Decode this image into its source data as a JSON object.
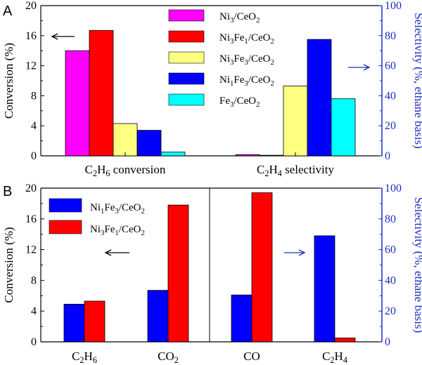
{
  "chart_data": [
    {
      "panel": "A",
      "type": "bar",
      "categories": [
        "C2H6 conversion",
        "C2H4 selectivity"
      ],
      "category_labels": [
        {
          "parts": [
            [
              "C",
              ""
            ],
            [
              "2",
              "sub"
            ],
            [
              "H",
              ""
            ],
            [
              "6",
              "sub"
            ],
            [
              " conversion",
              ""
            ]
          ]
        },
        {
          "parts": [
            [
              "C",
              ""
            ],
            [
              "2",
              "sub"
            ],
            [
              "H",
              ""
            ],
            [
              "4",
              "sub"
            ],
            [
              " selectivity",
              ""
            ]
          ]
        }
      ],
      "series": [
        {
          "name": "Ni3/CeO2",
          "color": "#ff00ff",
          "label_parts": [
            [
              "Ni",
              ""
            ],
            [
              "3",
              "sub"
            ],
            [
              "/CeO",
              ""
            ],
            [
              "2",
              "sub"
            ]
          ],
          "values": [
            14.0,
            0.8
          ],
          "axis": [
            "left",
            "right"
          ]
        },
        {
          "name": "Ni3Fe1/CeO2",
          "color": "#ff0000",
          "label_parts": [
            [
              "Ni",
              ""
            ],
            [
              "3",
              "sub"
            ],
            [
              "Fe",
              ""
            ],
            [
              "1",
              "sub"
            ],
            [
              "/CeO",
              ""
            ],
            [
              "2",
              "sub"
            ]
          ],
          "values": [
            16.7,
            0.4
          ],
          "axis": [
            "left",
            "right"
          ]
        },
        {
          "name": "Ni3Fe3/CeO2",
          "color": "#ffff80",
          "label_parts": [
            [
              "Ni",
              ""
            ],
            [
              "3",
              "sub"
            ],
            [
              "Fe",
              ""
            ],
            [
              "3",
              "sub"
            ],
            [
              "/CeO",
              ""
            ],
            [
              "2",
              "sub"
            ]
          ],
          "values": [
            4.3,
            46.5
          ],
          "axis": [
            "left",
            "right"
          ]
        },
        {
          "name": "Ni1Fe3/CeO2",
          "color": "#0000ff",
          "label_parts": [
            [
              "Ni",
              ""
            ],
            [
              "1",
              "sub"
            ],
            [
              "Fe",
              ""
            ],
            [
              "3",
              "sub"
            ],
            [
              "/CeO",
              ""
            ],
            [
              "2",
              "sub"
            ]
          ],
          "values": [
            3.4,
            77.5
          ],
          "axis": [
            "left",
            "right"
          ]
        },
        {
          "name": "Fe3/CeO2",
          "color": "#00ffff",
          "label_parts": [
            [
              "Fe",
              ""
            ],
            [
              "3",
              "sub"
            ],
            [
              "/CeO",
              ""
            ],
            [
              "2",
              "sub"
            ]
          ],
          "values": [
            0.5,
            38.0
          ],
          "axis": [
            "left",
            "right"
          ]
        }
      ],
      "ylabel_left": "Conversion (%)",
      "ylabel_right": "Selectivity (%, ethane basis)",
      "ylim_left": [
        0,
        20
      ],
      "ylim_right": [
        0,
        100
      ],
      "yticks_left": [
        0,
        4,
        8,
        12,
        16,
        20
      ],
      "yticks_right": [
        0,
        20,
        40,
        60,
        80,
        100
      ],
      "legend_position": "top-center",
      "arrows": [
        {
          "direction": "left",
          "color": "#000000"
        },
        {
          "direction": "right",
          "color": "#1a2fbf"
        }
      ]
    },
    {
      "panel": "B",
      "type": "bar",
      "categories": [
        "C2H6",
        "CO2",
        "CO",
        "C2H4"
      ],
      "category_labels": [
        {
          "parts": [
            [
              "C",
              ""
            ],
            [
              "2",
              "sub"
            ],
            [
              "H",
              ""
            ],
            [
              "6",
              "sub"
            ]
          ]
        },
        {
          "parts": [
            [
              "CO",
              ""
            ],
            [
              "2",
              "sub"
            ]
          ]
        },
        {
          "parts": [
            [
              "CO",
              ""
            ]
          ]
        },
        {
          "parts": [
            [
              "C",
              ""
            ],
            [
              "2",
              "sub"
            ],
            [
              "H",
              ""
            ],
            [
              "4",
              "sub"
            ]
          ]
        }
      ],
      "series": [
        {
          "name": "Ni1Fe3/CeO2",
          "color": "#0000ff",
          "label_parts": [
            [
              "Ni",
              ""
            ],
            [
              "1",
              "sub"
            ],
            [
              "Fe",
              ""
            ],
            [
              "3",
              "sub"
            ],
            [
              "/CeO",
              ""
            ],
            [
              "2",
              "sub"
            ]
          ],
          "values": [
            4.9,
            6.7,
            30.5,
            69.0
          ],
          "axis": [
            "left",
            "left",
            "right",
            "right"
          ]
        },
        {
          "name": "Ni3Fe1/CeO2",
          "color": "#ff0000",
          "label_parts": [
            [
              "Ni",
              ""
            ],
            [
              "3",
              "sub"
            ],
            [
              "Fe",
              ""
            ],
            [
              "1",
              "sub"
            ],
            [
              "/CeO",
              ""
            ],
            [
              "2",
              "sub"
            ]
          ],
          "values": [
            5.3,
            17.8,
            97.0,
            2.5
          ],
          "axis": [
            "left",
            "left",
            "right",
            "right"
          ]
        }
      ],
      "ylabel_left": "Conversion (%)",
      "ylabel_right": "Selectivity (%, ethane basis)",
      "ylim_left": [
        0,
        20
      ],
      "ylim_right": [
        0,
        100
      ],
      "yticks_left": [
        0,
        4,
        8,
        12,
        16,
        20
      ],
      "yticks_right": [
        0,
        20,
        40,
        60,
        80,
        100
      ],
      "legend_position": "top-left",
      "arrows": [
        {
          "direction": "left",
          "color": "#000000"
        },
        {
          "direction": "right",
          "color": "#1a2fbf"
        }
      ]
    }
  ],
  "panel_labels": [
    "A",
    "B"
  ],
  "colors": {
    "axis": "#000000",
    "right_axis": "#1a2fbf"
  }
}
